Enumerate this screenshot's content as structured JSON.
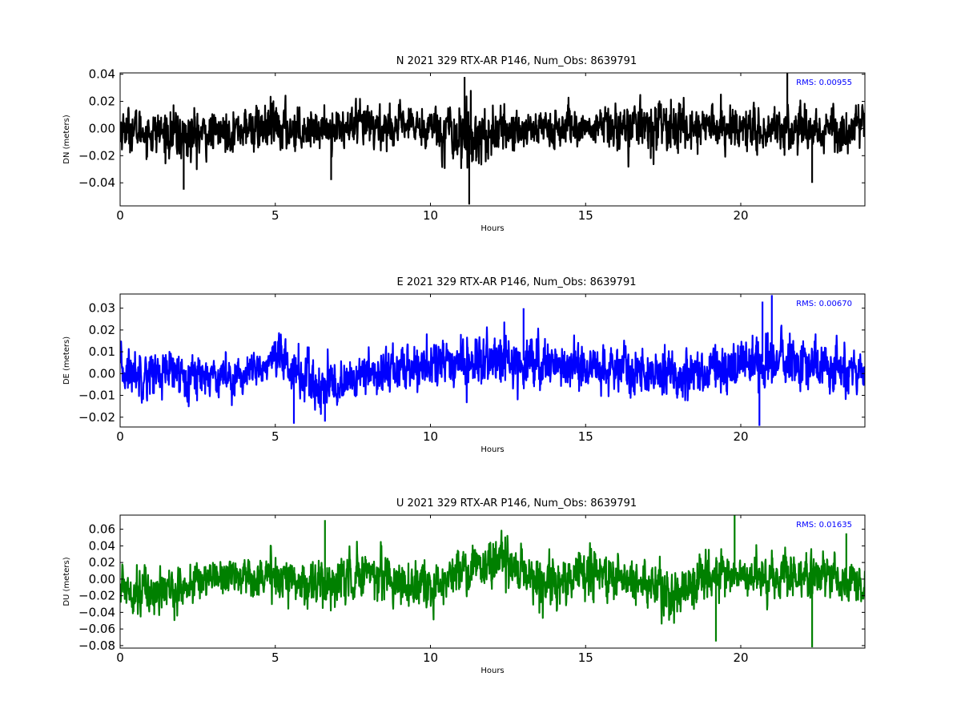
{
  "chart_data": [
    {
      "type": "line",
      "title": "N 2021 329 RTX-AR  P146, Num_Obs: 8639791",
      "xlabel": "Hours",
      "ylabel": "DN (meters)",
      "xlim": [
        0,
        24
      ],
      "ylim": [
        -0.057,
        0.041
      ],
      "xticks": [
        0,
        5,
        10,
        15,
        20
      ],
      "yticks": [
        -0.04,
        -0.02,
        0.0,
        0.02,
        0.04
      ],
      "ytick_labels": [
        "−0.04",
        "−0.02",
        "0.00",
        "0.02",
        "0.04"
      ],
      "color": "#000000",
      "annotation": "RMS:  0.00955",
      "annotation_color": "#0000ff",
      "noise": {
        "sigma": 0.0085,
        "envelope_x": [
          0,
          1.5,
          2.2,
          3.0,
          4.0,
          5.2,
          6.0,
          7.0,
          8.0,
          9.0,
          10.0,
          11.0,
          11.3,
          12.0,
          13.0,
          14.0,
          15.0,
          16.0,
          17.0,
          18.0,
          19.0,
          20.0,
          21.0,
          22.0,
          23.0,
          24.0
        ],
        "envelope_s": [
          1.0,
          1.1,
          1.45,
          0.9,
          1.0,
          1.3,
          0.9,
          0.85,
          1.2,
          0.9,
          1.0,
          1.6,
          1.7,
          1.2,
          1.0,
          1.1,
          0.75,
          1.2,
          1.1,
          1.3,
          1.0,
          1.0,
          1.1,
          1.25,
          1.1,
          1.0
        ],
        "mean_x": [
          0,
          2.2,
          4.0,
          7.0,
          10.0,
          11.3,
          13.0,
          15.0,
          17.0,
          20.0,
          24.0
        ],
        "mean_y": [
          0.0,
          -0.006,
          0.0,
          0.0,
          0.002,
          -0.006,
          0.0,
          0.0,
          0.002,
          0.0,
          0.0
        ],
        "spikes_x": [
          11.25,
          11.1,
          21.5,
          22.3,
          2.05,
          6.8
        ],
        "spikes_y": [
          -0.056,
          0.038,
          0.041,
          -0.04,
          -0.045,
          -0.038
        ]
      }
    },
    {
      "type": "line",
      "title": "E 2021 329 RTX-AR  P146, Num_Obs: 8639791",
      "xlabel": "Hours",
      "ylabel": "DE (meters)",
      "xlim": [
        0,
        24
      ],
      "ylim": [
        -0.0245,
        0.0365
      ],
      "xticks": [
        0,
        5,
        10,
        15,
        20
      ],
      "yticks": [
        -0.02,
        -0.01,
        0.0,
        0.01,
        0.02,
        0.03
      ],
      "ytick_labels": [
        "−0.02",
        "−0.01",
        "0.00",
        "0.01",
        "0.02",
        "0.03"
      ],
      "color": "#0000ff",
      "annotation": "RMS:  0.00670",
      "annotation_color": "#0000ff",
      "noise": {
        "sigma": 0.0058,
        "envelope_x": [
          0,
          1.0,
          2.0,
          3.0,
          4.0,
          5.2,
          5.6,
          6.5,
          7.5,
          8.0,
          9.0,
          10.0,
          11.0,
          12.0,
          13.0,
          14.0,
          15.0,
          16.0,
          17.0,
          18.0,
          19.0,
          20.0,
          21.0,
          22.0,
          23.0,
          24.0
        ],
        "envelope_s": [
          1.05,
          1.0,
          1.0,
          0.85,
          0.8,
          1.0,
          1.2,
          1.2,
          0.8,
          0.9,
          1.05,
          1.1,
          1.0,
          1.05,
          1.15,
          1.0,
          0.9,
          1.05,
          0.95,
          0.95,
          1.05,
          1.2,
          1.25,
          1.1,
          1.0,
          1.0
        ],
        "mean_x": [
          0,
          2.0,
          4.0,
          5.2,
          6.5,
          8.0,
          10.0,
          13.0,
          15.0,
          18.0,
          21.0,
          24.0
        ],
        "mean_y": [
          0.001,
          0.0,
          -0.001,
          0.006,
          -0.008,
          0.0,
          0.004,
          0.006,
          0.003,
          0.0,
          0.006,
          0.0
        ],
        "spikes_x": [
          21.0,
          20.7,
          5.6,
          6.6,
          13.0,
          20.6
        ],
        "spikes_y": [
          0.036,
          0.033,
          -0.023,
          -0.022,
          0.03,
          -0.024
        ]
      }
    },
    {
      "type": "line",
      "title": "U 2021 329 RTX-AR  P146, Num_Obs: 8639791",
      "xlabel": "Hours",
      "ylabel": "DU (meters)",
      "xlim": [
        0,
        24
      ],
      "ylim": [
        -0.083,
        0.077
      ],
      "xticks": [
        0,
        5,
        10,
        15,
        20
      ],
      "yticks": [
        -0.08,
        -0.06,
        -0.04,
        -0.02,
        0.0,
        0.02,
        0.04,
        0.06
      ],
      "ytick_labels": [
        "−0.08",
        "−0.06",
        "−0.04",
        "−0.02",
        "0.00",
        "0.02",
        "0.04",
        "0.06"
      ],
      "color": "#008000",
      "annotation": "RMS:  0.01635",
      "annotation_color": "#0000ff",
      "noise": {
        "sigma": 0.0145,
        "envelope_x": [
          0,
          1.0,
          2.0,
          3.0,
          4.0,
          5.0,
          6.0,
          6.6,
          7.5,
          8.5,
          9.5,
          10.5,
          11.5,
          12.5,
          13.5,
          14.5,
          15.0,
          16.0,
          17.0,
          17.8,
          19.0,
          20.0,
          21.0,
          22.0,
          23.0,
          24.0
        ],
        "envelope_s": [
          1.0,
          1.15,
          0.9,
          0.85,
          0.9,
          1.0,
          1.1,
          1.25,
          1.0,
          1.05,
          1.0,
          0.95,
          1.15,
          1.1,
          1.2,
          1.0,
          1.15,
          1.0,
          1.0,
          1.2,
          1.1,
          1.0,
          1.05,
          1.1,
          1.0,
          1.0
        ],
        "mean_x": [
          0,
          1.0,
          2.0,
          3.0,
          5.0,
          6.6,
          8.0,
          10.0,
          11.0,
          12.5,
          14.0,
          15.0,
          17.0,
          17.8,
          19.0,
          20.0,
          22.0,
          24.0
        ],
        "mean_y": [
          -0.008,
          -0.015,
          -0.012,
          0.005,
          0.003,
          -0.008,
          0.01,
          -0.015,
          0.012,
          0.02,
          -0.015,
          0.01,
          -0.005,
          -0.02,
          0.005,
          0.0,
          0.005,
          -0.005
        ],
        "spikes_x": [
          19.8,
          22.3,
          6.6,
          19.2,
          23.4
        ],
        "spikes_y": [
          0.077,
          -0.082,
          0.071,
          -0.075,
          0.055
        ]
      }
    }
  ]
}
